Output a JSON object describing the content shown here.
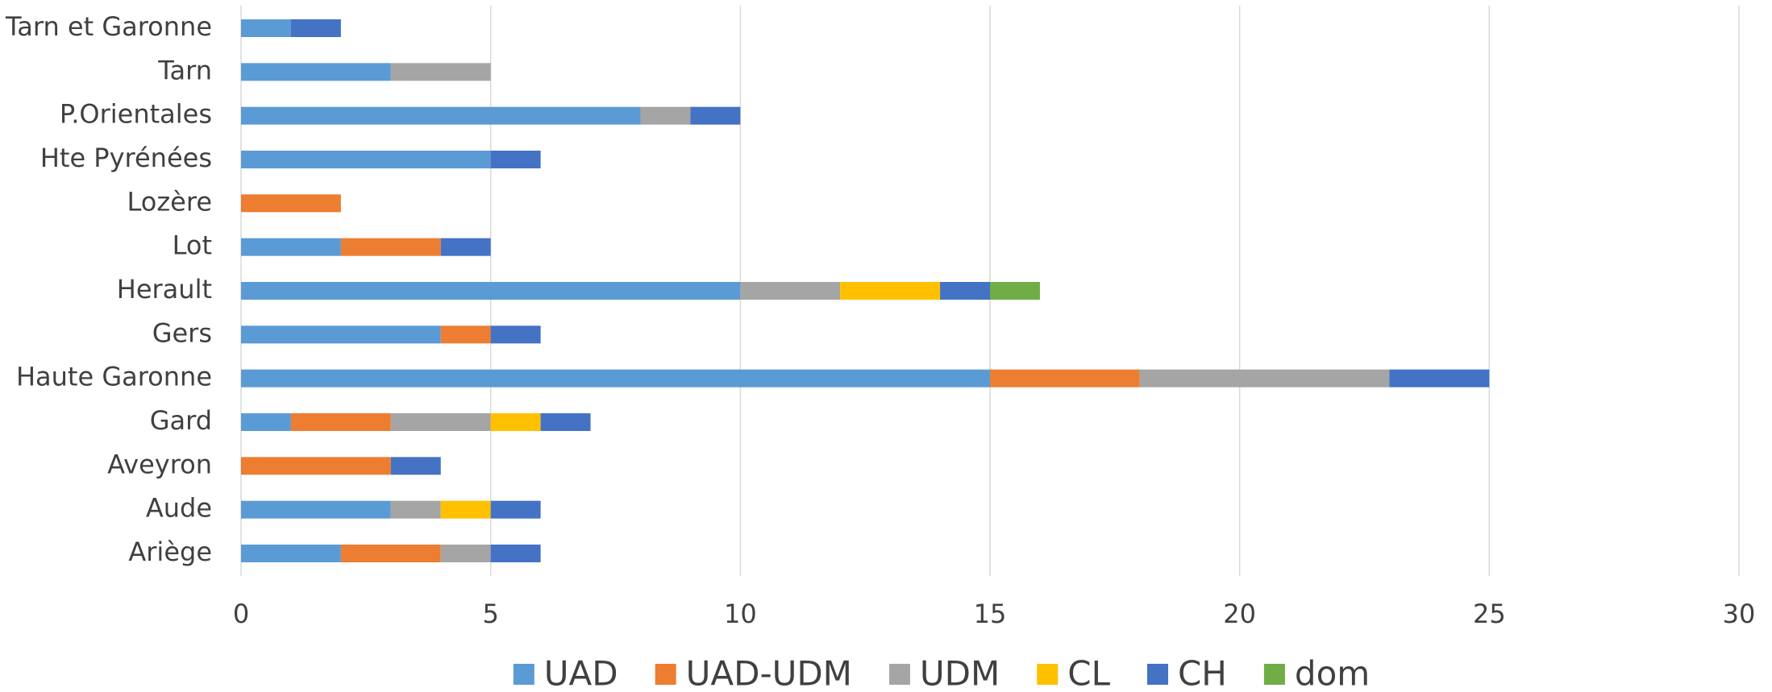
{
  "chart_data": {
    "type": "stacked_barh",
    "categories": [
      "Ariège",
      "Aude",
      "Aveyron",
      "Gard",
      "Haute Garonne",
      "Gers",
      "Herault",
      "Lot",
      "Lozère",
      "Hte Pyrénées",
      "P.Orientales",
      "Tarn",
      "Tarn et Garonne"
    ],
    "series": [
      {
        "name": "UAD",
        "color": "#5b9bd5",
        "values": [
          2,
          3,
          0,
          1,
          15,
          4,
          10,
          2,
          0,
          5,
          8,
          3,
          1
        ]
      },
      {
        "name": "UAD-UDM",
        "color": "#ed7d31",
        "values": [
          2,
          0,
          3,
          2,
          3,
          1,
          0,
          2,
          2,
          0,
          0,
          0,
          0
        ]
      },
      {
        "name": "UDM",
        "color": "#a5a5a5",
        "values": [
          1,
          1,
          0,
          2,
          5,
          0,
          2,
          0,
          0,
          0,
          1,
          2,
          0
        ]
      },
      {
        "name": "CL",
        "color": "#ffc000",
        "values": [
          0,
          1,
          0,
          1,
          0,
          0,
          2,
          0,
          0,
          0,
          0,
          0,
          0
        ]
      },
      {
        "name": "CH",
        "color": "#4472c4",
        "values": [
          1,
          1,
          1,
          1,
          2,
          1,
          1,
          1,
          0,
          1,
          1,
          0,
          1
        ]
      },
      {
        "name": "dom",
        "color": "#70ad47",
        "values": [
          0,
          0,
          0,
          0,
          0,
          0,
          1,
          0,
          0,
          0,
          0,
          0,
          0
        ]
      }
    ],
    "xlim": [
      0,
      30
    ],
    "xticks": [
      0,
      5,
      10,
      15,
      20,
      25,
      30
    ],
    "grid": true,
    "legend": "bottom"
  }
}
